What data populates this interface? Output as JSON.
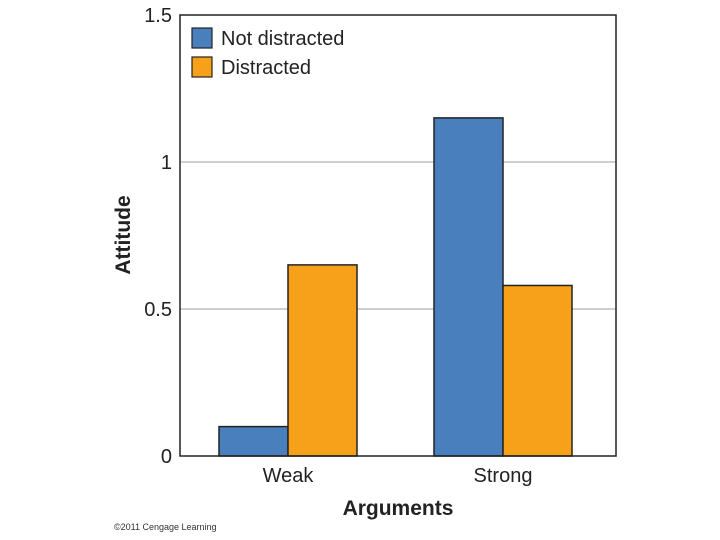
{
  "chart_data": {
    "type": "bar",
    "title": "",
    "xlabel": "Arguments",
    "ylabel": "Attitude",
    "categories": [
      "Weak",
      "Strong"
    ],
    "series": [
      {
        "name": "Not distracted",
        "color": "#4a7fbd",
        "values": [
          0.1,
          1.15
        ]
      },
      {
        "name": "Distracted",
        "color": "#f7a11a",
        "values": [
          0.65,
          0.58
        ]
      }
    ],
    "ylim": [
      0,
      1.5
    ],
    "yticks": [
      0,
      0.5,
      1,
      1.5
    ],
    "ytick_labels": [
      "0",
      "0.5",
      "1",
      "1.5"
    ],
    "grid": true,
    "legend_position": "top-left"
  },
  "footer": {
    "copyright": "©2011 Cengage Learning"
  }
}
